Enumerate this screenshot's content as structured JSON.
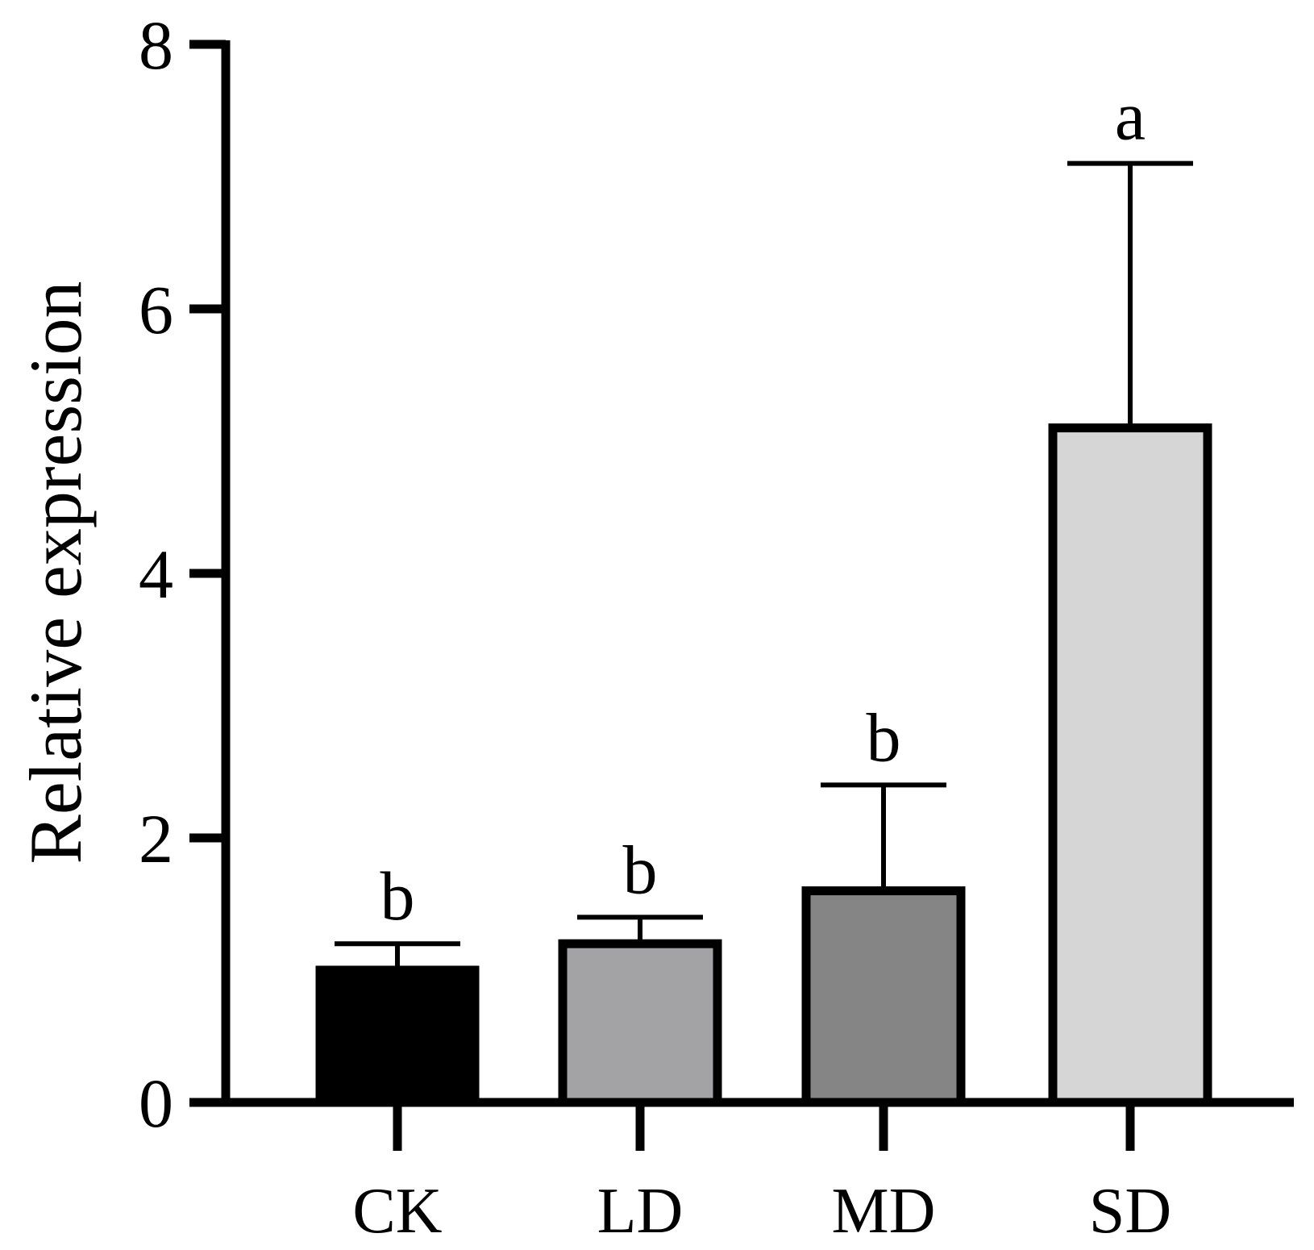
{
  "chart_data": {
    "type": "bar",
    "title": "",
    "xlabel": "",
    "ylabel": "Relative expression",
    "ylim": [
      0,
      8
    ],
    "yticks": [
      0,
      2,
      4,
      6,
      8
    ],
    "grid": false,
    "categories": [
      "CK",
      "LD",
      "MD",
      "SD"
    ],
    "values": [
      1.0,
      1.2,
      1.6,
      5.1
    ],
    "errors": [
      0.2,
      0.2,
      0.8,
      2.0
    ],
    "significance": [
      "b",
      "b",
      "b",
      "a"
    ],
    "colors": [
      "#000000",
      "#a3a3a6",
      "#858585",
      "#d6d6d6"
    ]
  }
}
